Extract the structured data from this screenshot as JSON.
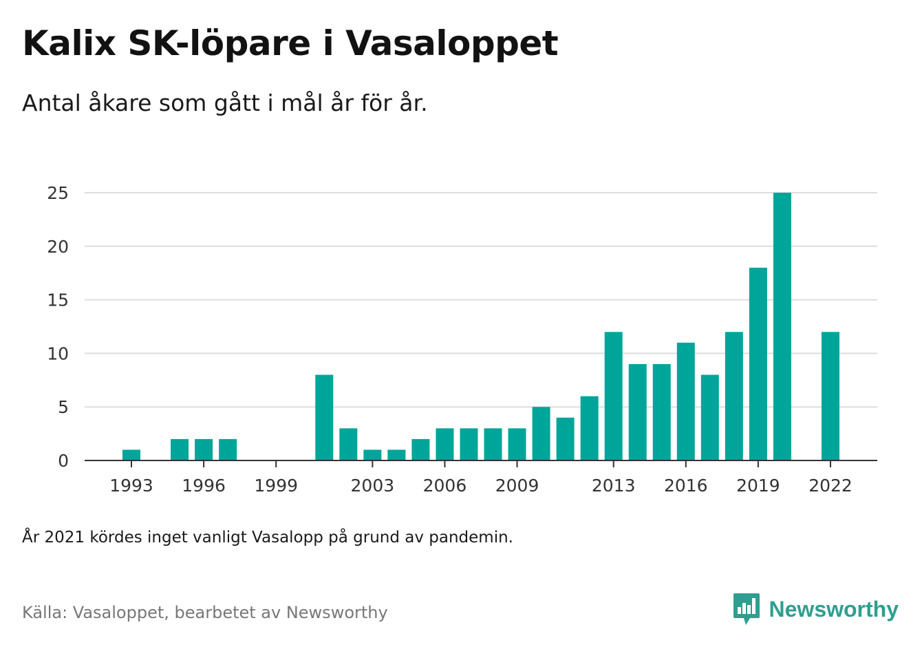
{
  "header": {
    "title": "Kalix SK-löpare i Vasaloppet",
    "subtitle": "Antal åkare som gått i mål år för år."
  },
  "footer": {
    "note": "År 2021 kördes inget vanligt Vasalopp på grund av pandemin.",
    "source": "Källa: Vasaloppet, bearbetet av Newsworthy",
    "brand": "Newsworthy",
    "brand_icon": "newsworthy-logo-icon"
  },
  "colors": {
    "bar": "#00a59a",
    "grid": "#dddddd",
    "axis": "#333333",
    "brand": "#2f9e90"
  },
  "chart_data": {
    "type": "bar",
    "title": "Kalix SK-löpare i Vasaloppet",
    "subtitle": "Antal åkare som gått i mål år för år.",
    "x": [
      1993,
      1994,
      1995,
      1996,
      1997,
      1998,
      1999,
      2000,
      2001,
      2002,
      2003,
      2004,
      2005,
      2006,
      2007,
      2008,
      2009,
      2010,
      2011,
      2012,
      2013,
      2014,
      2015,
      2016,
      2017,
      2018,
      2019,
      2020,
      2021,
      2022
    ],
    "values": [
      1,
      0,
      2,
      2,
      2,
      0,
      0,
      0,
      8,
      3,
      1,
      1,
      2,
      3,
      3,
      3,
      3,
      5,
      4,
      6,
      12,
      9,
      9,
      11,
      8,
      12,
      18,
      25,
      0,
      12
    ],
    "x_tick_labels": [
      "1993",
      "1996",
      "1999",
      "2003",
      "2006",
      "2009",
      "2013",
      "2016",
      "2019",
      "2022"
    ],
    "y_ticks": [
      0,
      5,
      10,
      15,
      20,
      25
    ],
    "ylim": [
      0,
      25
    ],
    "grid": true,
    "xlabel": "",
    "ylabel": ""
  }
}
